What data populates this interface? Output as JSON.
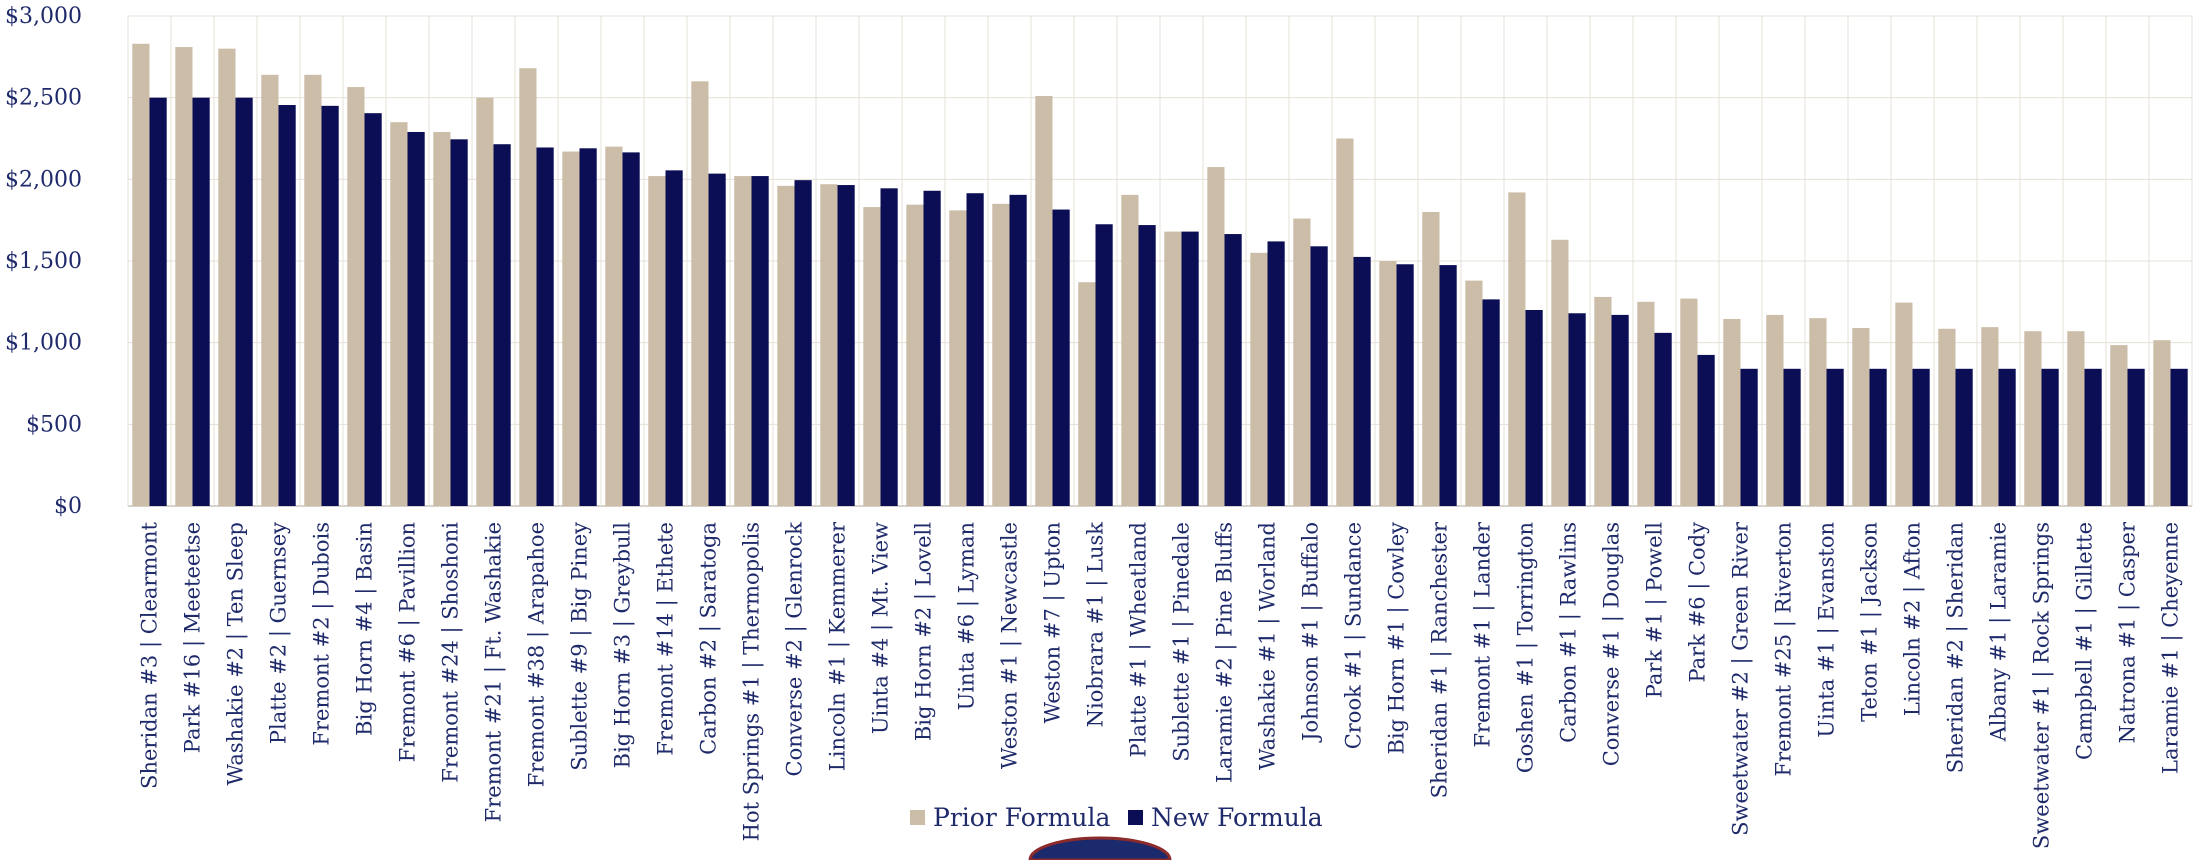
{
  "chart_data": {
    "type": "bar",
    "ylim": [
      0,
      3000
    ],
    "yticks": [
      0,
      500,
      1000,
      1500,
      2000,
      2500,
      3000
    ],
    "ytick_labels": [
      "$0",
      "$500",
      "$1,000",
      "$1,500",
      "$2,000",
      "$2,500",
      "$3,000"
    ],
    "grid": true,
    "legend_position": "bottom",
    "categories": [
      "Sheridan #3 | Clearmont",
      "Park #16 | Meeteetse",
      "Washakie #2 | Ten Sleep",
      "Platte #2 | Guernsey",
      "Fremont #2 | Dubois",
      "Big Horn #4 | Basin",
      "Fremont #6 | Pavillion",
      "Fremont #24 | Shoshoni",
      "Fremont #21 | Ft. Washakie",
      "Fremont #38 | Arapahoe",
      "Sublette #9 | Big Piney",
      "Big Horn #3 | Greybull",
      "Fremont #14 | Ethete",
      "Carbon #2 | Saratoga",
      "Hot Springs #1 | Thermopolis",
      "Converse #2 | Glenrock",
      "Lincoln #1 | Kemmerer",
      "Uinta #4 | Mt. View",
      "Big Horn #2 | Lovell",
      "Uinta #6 | Lyman",
      "Weston #1 | Newcastle",
      "Weston #7 | Upton",
      "Niobrara #1 | Lusk",
      "Platte #1 | Wheatland",
      "Sublette #1 | Pinedale",
      "Laramie #2 | Pine Bluffs",
      "Washakie #1 | Worland",
      "Johnson #1 | Buffalo",
      "Crook #1 | Sundance",
      "Big Horn #1 | Cowley",
      "Sheridan #1 | Ranchester",
      "Fremont #1 | Lander",
      "Goshen #1 | Torrington",
      "Carbon #1 | Rawlins",
      "Converse #1 | Douglas",
      "Park #1 | Powell",
      "Park #6 | Cody",
      "Sweetwater #2 | Green River",
      "Fremont #25 | Riverton",
      "Uinta #1 | Evanston",
      "Teton #1 | Jackson",
      "Lincoln #2 | Afton",
      "Sheridan #2 | Sheridan",
      "Albany #1 | Laramie",
      "Sweetwater #1 | Rock Springs",
      "Campbell #1 | Gillette",
      "Natrona #1 | Casper",
      "Laramie #1 | Cheyenne"
    ],
    "series": [
      {
        "name": "Prior Formula",
        "color": "#cbbda8",
        "values": [
          2830,
          2810,
          2800,
          2640,
          2640,
          2565,
          2350,
          2290,
          2500,
          2680,
          2170,
          2200,
          2020,
          2600,
          2020,
          1960,
          1970,
          1830,
          1845,
          1810,
          1850,
          2510,
          1370,
          1905,
          1680,
          2075,
          1550,
          1760,
          2250,
          1500,
          1800,
          1380,
          1920,
          1630,
          1280,
          1250,
          1270,
          1145,
          1170,
          1150,
          1090,
          1245,
          1085,
          1095,
          1070,
          1070,
          985,
          1015
        ]
      },
      {
        "name": "New Formula",
        "color": "#0b0e55",
        "values": [
          2500,
          2500,
          2500,
          2455,
          2450,
          2405,
          2290,
          2245,
          2215,
          2195,
          2190,
          2165,
          2055,
          2035,
          2020,
          1995,
          1965,
          1945,
          1930,
          1915,
          1905,
          1815,
          1725,
          1720,
          1680,
          1665,
          1620,
          1590,
          1525,
          1480,
          1475,
          1265,
          1200,
          1180,
          1170,
          1060,
          925,
          840,
          840,
          840,
          840,
          840,
          840,
          840,
          840,
          840,
          840,
          840
        ]
      }
    ]
  }
}
